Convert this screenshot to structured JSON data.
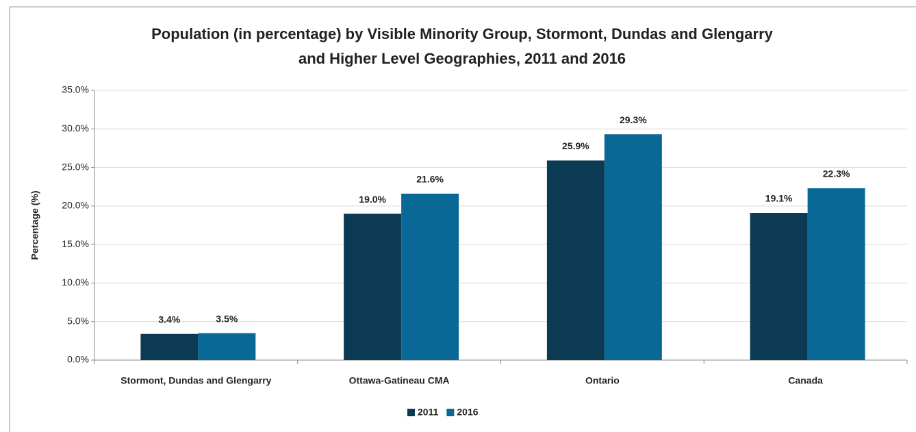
{
  "chart_data": {
    "type": "bar",
    "title": [
      "Population (in percentage) by Visible Minority Group, Stormont, Dundas and Glengarry",
      "and Higher Level Geographies, 2011 and 2016"
    ],
    "y_label": "Percentage (%)",
    "categories": [
      "Stormont, Dundas and Glengarry",
      "Ottawa-Gatineau CMA",
      "Ontario",
      "Canada"
    ],
    "series": [
      {
        "name": "2011",
        "color": "#0b3a52",
        "values": [
          3.4,
          19.0,
          25.9,
          19.1
        ],
        "value_labels": [
          "3.4%",
          "19.0%",
          "25.9%",
          "19.1%"
        ]
      },
      {
        "name": "2016",
        "color": "#0a6896",
        "values": [
          3.5,
          21.6,
          29.3,
          22.3
        ],
        "value_labels": [
          "3.5%",
          "21.6%",
          "29.3%",
          "22.3%"
        ]
      }
    ],
    "ylim": [
      0,
      35
    ],
    "yticks": [
      {
        "value": 0,
        "label": "0.0%"
      },
      {
        "value": 5,
        "label": "5.0%"
      },
      {
        "value": 10,
        "label": "10.0%"
      },
      {
        "value": 15,
        "label": "15.0%"
      },
      {
        "value": 20,
        "label": "20.0%"
      },
      {
        "value": 25,
        "label": "25.0%"
      },
      {
        "value": 30,
        "label": "30.0%"
      },
      {
        "value": 35,
        "label": "35.0%"
      }
    ],
    "grid": true,
    "legend": "bottom"
  }
}
